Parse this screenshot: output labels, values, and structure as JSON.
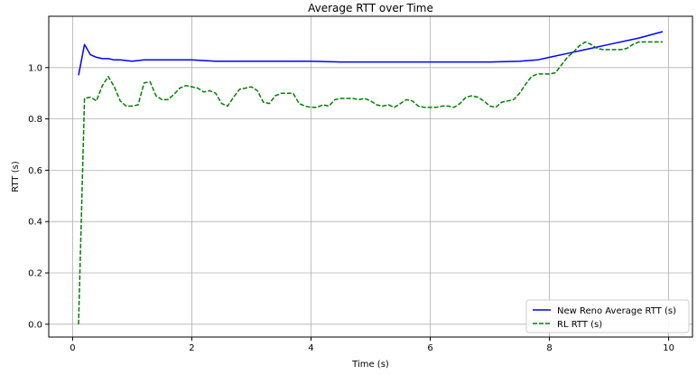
{
  "chart_data": {
    "type": "line",
    "title": "Average RTT over Time",
    "xlabel": "Time (s)",
    "ylabel": "RTT (s)",
    "xlim": [
      -0.4,
      10.4
    ],
    "ylim": [
      -0.05,
      1.2
    ],
    "xticks": [
      0,
      2,
      4,
      6,
      8,
      10
    ],
    "xtick_labels": [
      "0",
      "2",
      "4",
      "6",
      "8",
      "10"
    ],
    "yticks": [
      0.0,
      0.2,
      0.4,
      0.6,
      0.8,
      1.0
    ],
    "ytick_labels": [
      "0.0",
      "0.2",
      "0.4",
      "0.6",
      "0.8",
      "1.0"
    ],
    "grid": true,
    "legend_position": "bottom-right",
    "series": [
      {
        "name": "New Reno Average RTT (s)",
        "color": "#0000ff",
        "style": "solid",
        "x": [
          0.1,
          0.2,
          0.3,
          0.4,
          0.5,
          0.6,
          0.7,
          0.8,
          1.0,
          1.2,
          1.4,
          1.6,
          1.8,
          2.0,
          2.4,
          2.8,
          3.2,
          3.6,
          4.0,
          4.5,
          5.0,
          5.5,
          6.0,
          6.5,
          7.0,
          7.5,
          7.8,
          8.0,
          8.3,
          8.6,
          9.0,
          9.5,
          9.9
        ],
        "y": [
          0.97,
          1.09,
          1.05,
          1.04,
          1.035,
          1.035,
          1.03,
          1.03,
          1.025,
          1.03,
          1.03,
          1.03,
          1.03,
          1.03,
          1.025,
          1.025,
          1.025,
          1.025,
          1.025,
          1.022,
          1.022,
          1.022,
          1.022,
          1.022,
          1.022,
          1.025,
          1.03,
          1.04,
          1.055,
          1.07,
          1.09,
          1.115,
          1.14
        ]
      },
      {
        "name": "RL RTT (s)",
        "color": "#008000",
        "style": "dashed",
        "x": [
          0.1,
          0.2,
          0.3,
          0.4,
          0.5,
          0.6,
          0.7,
          0.8,
          0.9,
          1.0,
          1.1,
          1.2,
          1.3,
          1.4,
          1.5,
          1.6,
          1.7,
          1.8,
          1.9,
          2.0,
          2.1,
          2.2,
          2.3,
          2.4,
          2.5,
          2.6,
          2.7,
          2.8,
          2.9,
          3.0,
          3.1,
          3.2,
          3.3,
          3.4,
          3.5,
          3.6,
          3.7,
          3.8,
          3.9,
          4.0,
          4.1,
          4.2,
          4.3,
          4.4,
          4.5,
          4.6,
          4.7,
          4.8,
          4.9,
          5.0,
          5.1,
          5.2,
          5.3,
          5.4,
          5.5,
          5.6,
          5.7,
          5.8,
          5.9,
          6.0,
          6.1,
          6.2,
          6.3,
          6.4,
          6.5,
          6.6,
          6.7,
          6.8,
          6.9,
          7.0,
          7.1,
          7.2,
          7.3,
          7.4,
          7.5,
          7.6,
          7.7,
          7.8,
          7.9,
          8.0,
          8.1,
          8.2,
          8.3,
          8.4,
          8.5,
          8.6,
          8.7,
          8.8,
          8.9,
          9.0,
          9.1,
          9.2,
          9.3,
          9.4,
          9.5,
          9.6,
          9.7,
          9.8,
          9.9
        ],
        "y": [
          0.0,
          0.88,
          0.885,
          0.87,
          0.93,
          0.965,
          0.925,
          0.87,
          0.85,
          0.85,
          0.855,
          0.94,
          0.945,
          0.89,
          0.875,
          0.875,
          0.895,
          0.92,
          0.93,
          0.925,
          0.92,
          0.905,
          0.91,
          0.9,
          0.86,
          0.85,
          0.885,
          0.915,
          0.92,
          0.925,
          0.91,
          0.865,
          0.86,
          0.89,
          0.9,
          0.9,
          0.9,
          0.86,
          0.85,
          0.845,
          0.845,
          0.855,
          0.85,
          0.875,
          0.88,
          0.88,
          0.88,
          0.875,
          0.88,
          0.87,
          0.855,
          0.85,
          0.855,
          0.845,
          0.86,
          0.875,
          0.87,
          0.85,
          0.845,
          0.845,
          0.845,
          0.85,
          0.85,
          0.845,
          0.86,
          0.885,
          0.89,
          0.885,
          0.87,
          0.85,
          0.845,
          0.865,
          0.87,
          0.875,
          0.9,
          0.935,
          0.965,
          0.975,
          0.975,
          0.975,
          0.98,
          1.01,
          1.04,
          1.06,
          1.085,
          1.1,
          1.09,
          1.075,
          1.07,
          1.07,
          1.07,
          1.07,
          1.075,
          1.09,
          1.1,
          1.1,
          1.1,
          1.1,
          1.1
        ]
      }
    ]
  }
}
